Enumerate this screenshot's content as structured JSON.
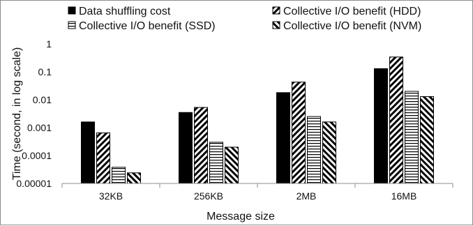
{
  "chart_data": {
    "type": "bar",
    "title": "",
    "xlabel": "Message size",
    "ylabel": "Time (second, in log scale)",
    "yscale": "log",
    "ylim": [
      1e-05,
      1
    ],
    "yticks": [
      1,
      0.1,
      0.01,
      0.001,
      0.0001,
      1e-05
    ],
    "ytick_labels": [
      "1",
      "0.1",
      "0.01",
      "0.001",
      "0.0001",
      "0.00001"
    ],
    "categories": [
      "32KB",
      "256KB",
      "2MB",
      "16MB"
    ],
    "legend_position": "top",
    "grid": false,
    "series": [
      {
        "name": "Data shuffling cost",
        "pattern": "solid-black",
        "values": [
          0.0016,
          0.0035,
          0.018,
          0.13
        ]
      },
      {
        "name": "Collective I/O benefit (HDD)",
        "pattern": "forward-diagonal",
        "values": [
          0.00065,
          0.0053,
          0.043,
          0.34
        ]
      },
      {
        "name": "Collective I/O benefit (SSD)",
        "pattern": "horizontal-lines",
        "values": [
          3.8e-05,
          0.0003,
          0.0025,
          0.02
        ]
      },
      {
        "name": "Collective I/O benefit (NVM)",
        "pattern": "backward-diagonal",
        "values": [
          2.4e-05,
          0.0002,
          0.0016,
          0.013
        ]
      }
    ]
  }
}
